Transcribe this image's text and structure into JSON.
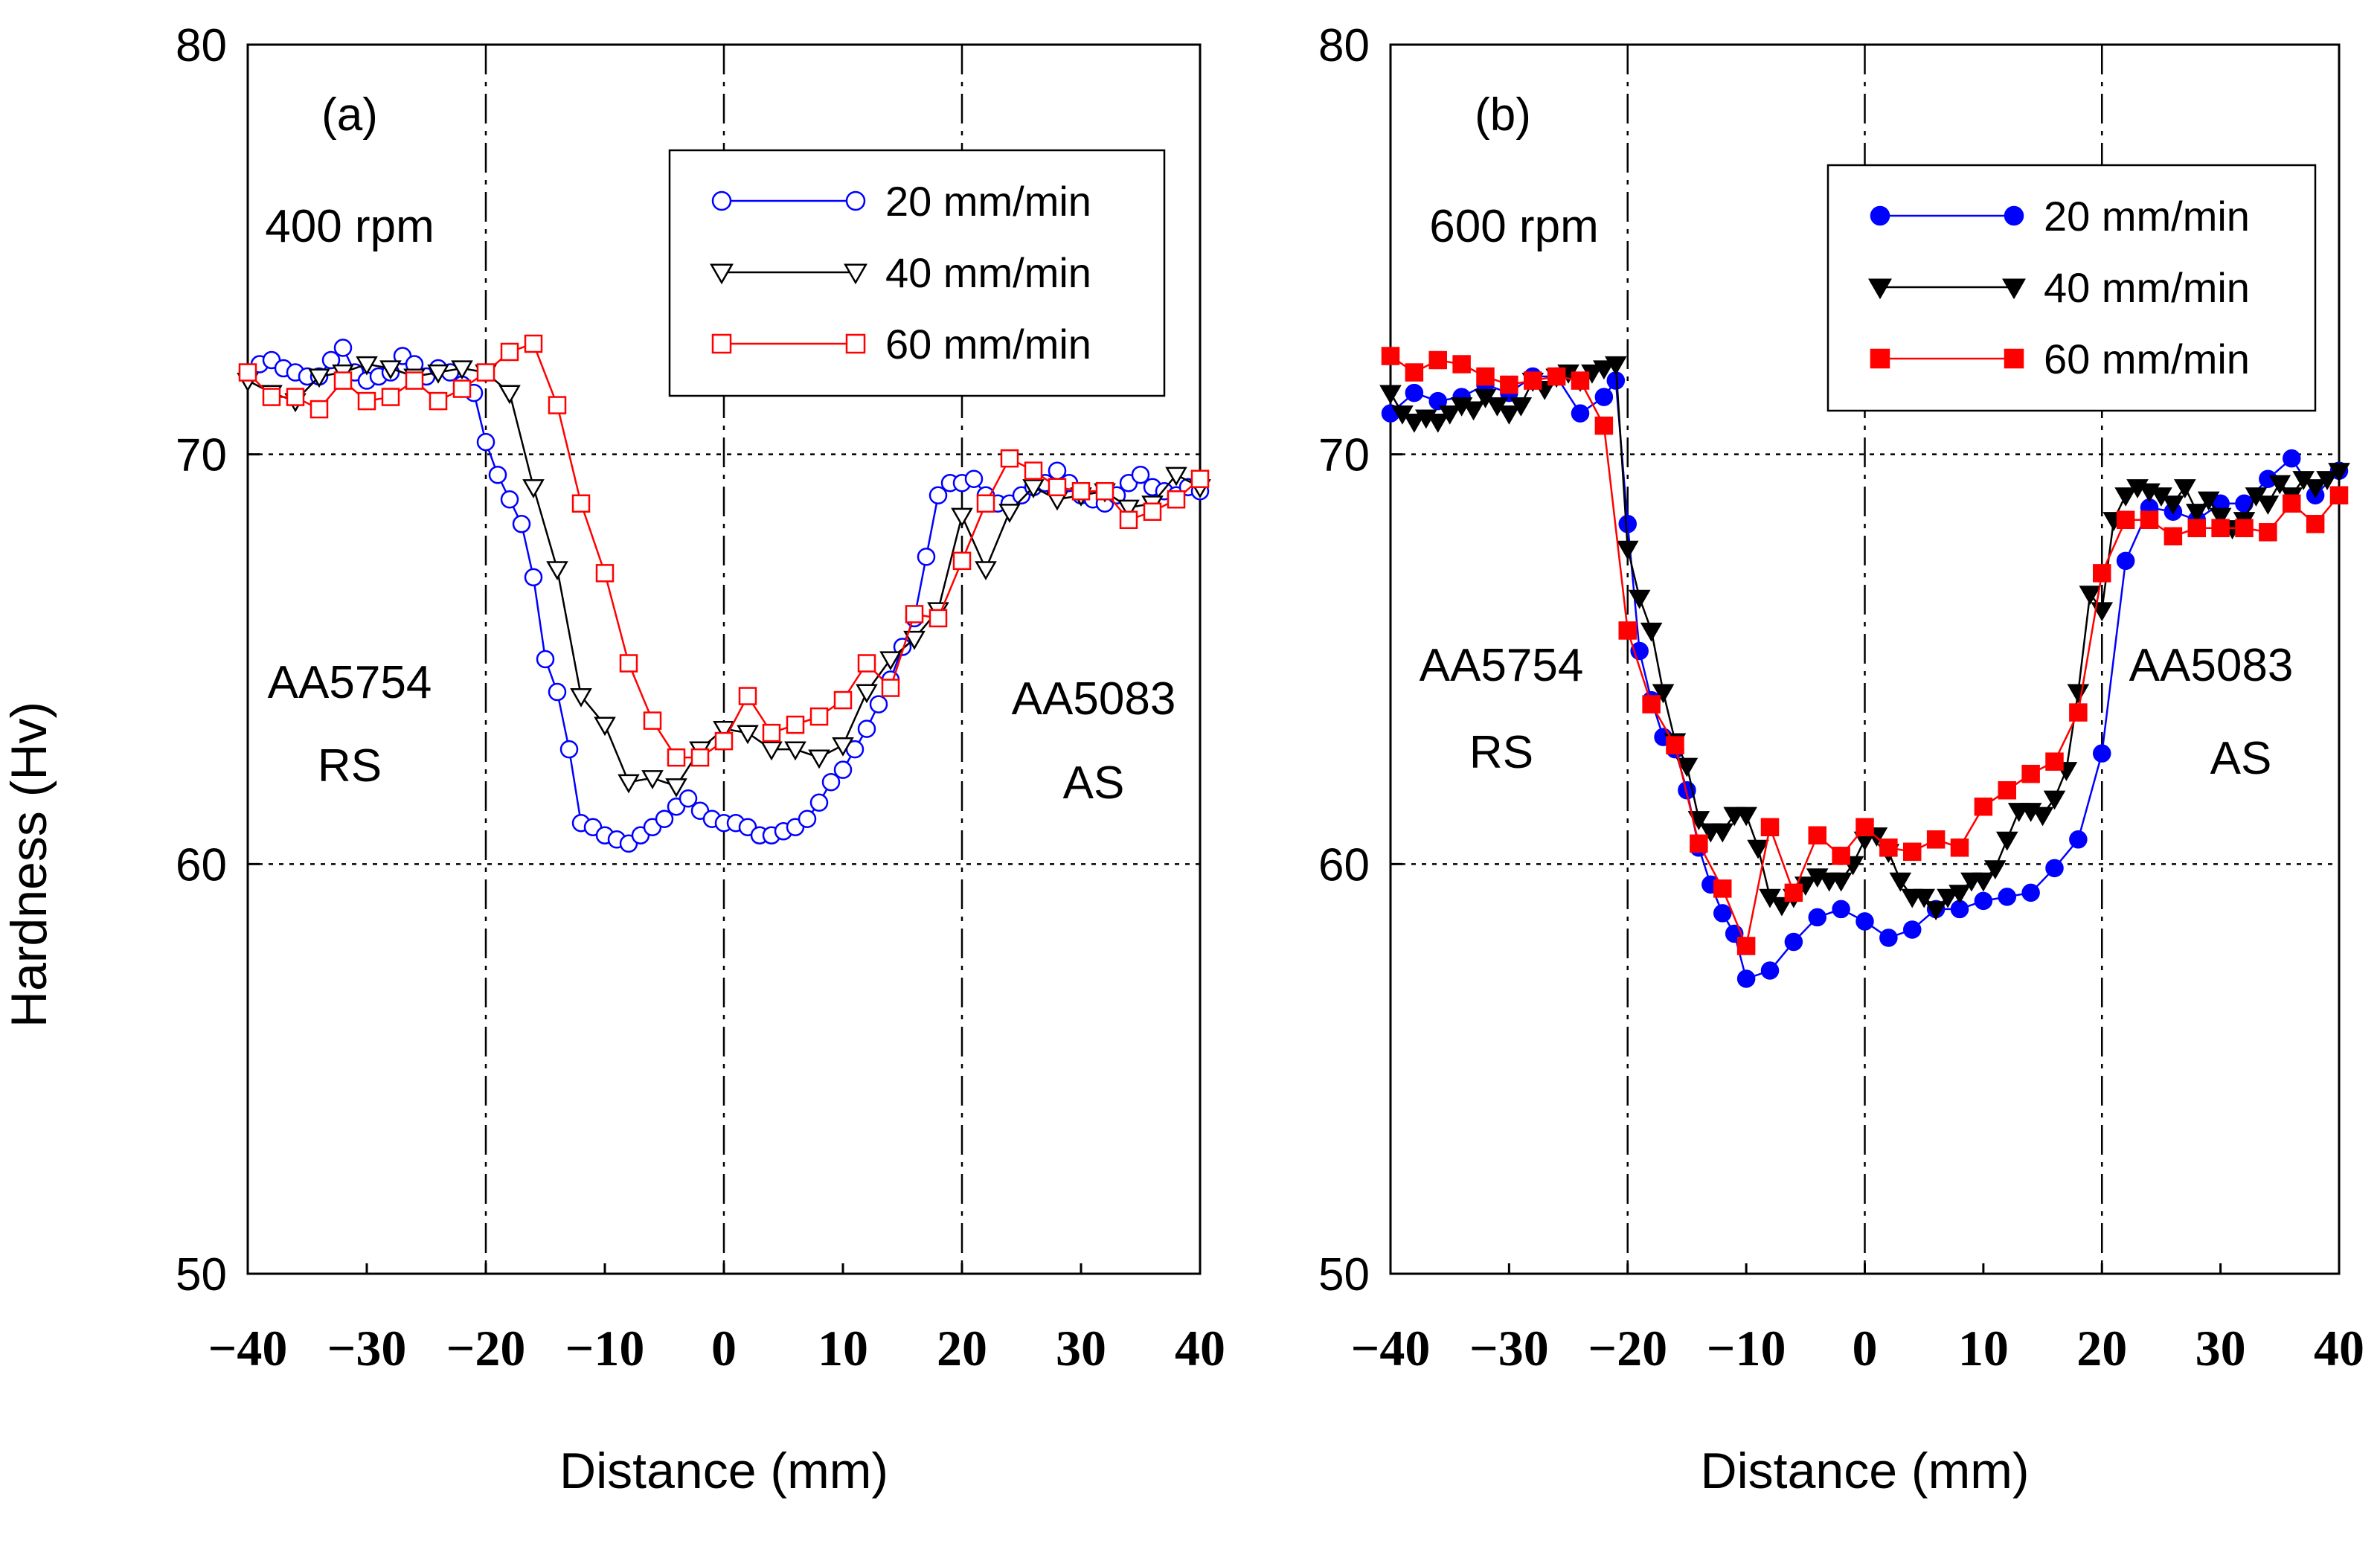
{
  "ylabel": "Hardness (Hv)",
  "chart_data": [
    {
      "type": "line",
      "panel_label": "(a)",
      "condition": "400 rpm",
      "left_material": "AA5754",
      "left_side": "RS",
      "right_material": "AA5083",
      "right_side": "AS",
      "xlabel": "Distance (mm)",
      "ylabel": "Hardness (Hv)",
      "xlim": [
        -40,
        40
      ],
      "ylim": [
        50,
        80
      ],
      "xticks": [
        "−40",
        "−30",
        "−20",
        "−10",
        "0",
        "10",
        "20",
        "30",
        "40"
      ],
      "xtick_values": [
        -40,
        -30,
        -20,
        -10,
        0,
        10,
        20,
        30,
        40
      ],
      "yticks": [
        "50",
        "60",
        "70",
        "80"
      ],
      "ytick_values": [
        50,
        60,
        70,
        80
      ],
      "vlines": [
        -20,
        0,
        20
      ],
      "hlines": [
        60,
        70
      ],
      "legend_position": "top-right",
      "series": [
        {
          "name": "20 mm/min",
          "color": "#0000ff",
          "marker": "circle-open",
          "x": [
            -40,
            -39,
            -38,
            -37,
            -36,
            -35,
            -34,
            -33,
            -32,
            -31,
            -30,
            -29,
            -28,
            -27,
            -26,
            -25,
            -24,
            -23,
            -22,
            -21,
            -20,
            -19,
            -18,
            -17,
            -16,
            -15,
            -14,
            -13,
            -12,
            -11,
            -10,
            -9,
            -8,
            -7,
            -6,
            -5,
            -4,
            -3,
            -2,
            -1,
            0,
            1,
            2,
            3,
            4,
            5,
            6,
            7,
            8,
            9,
            10,
            11,
            12,
            13,
            14,
            15,
            16,
            17,
            18,
            19,
            20,
            21,
            22,
            23,
            24,
            25,
            26,
            27,
            28,
            29,
            30,
            31,
            32,
            33,
            34,
            35,
            36,
            37,
            38,
            39,
            40
          ],
          "y": [
            72.0,
            72.2,
            72.3,
            72.1,
            72.0,
            71.9,
            71.9,
            72.3,
            72.6,
            72.0,
            71.8,
            71.9,
            72.0,
            72.4,
            72.2,
            71.9,
            72.1,
            72.0,
            71.7,
            71.5,
            70.3,
            69.5,
            68.9,
            68.3,
            67.0,
            65.0,
            64.2,
            62.8,
            61.0,
            60.9,
            60.7,
            60.6,
            60.5,
            60.7,
            60.9,
            61.1,
            61.4,
            61.6,
            61.3,
            61.1,
            61.0,
            61.0,
            60.9,
            60.7,
            60.7,
            60.8,
            60.9,
            61.1,
            61.5,
            62.0,
            62.3,
            62.8,
            63.3,
            63.9,
            64.5,
            65.3,
            66.0,
            67.5,
            69.0,
            69.3,
            69.3,
            69.4,
            69.0,
            68.8,
            68.8,
            69.0,
            69.2,
            69.3,
            69.6,
            69.3,
            69.0,
            68.9,
            68.8,
            69.0,
            69.3,
            69.5,
            69.2,
            69.1,
            69.0,
            69.2,
            69.1
          ]
        },
        {
          "name": "40 mm/min",
          "color": "#000000",
          "marker": "triangle-down-open",
          "x": [
            -40,
            -38,
            -36,
            -34,
            -32,
            -30,
            -28,
            -26,
            -24,
            -22,
            -20,
            -18,
            -16,
            -14,
            -12,
            -10,
            -8,
            -6,
            -4,
            -2,
            0,
            2,
            4,
            6,
            8,
            10,
            12,
            14,
            16,
            18,
            20,
            22,
            24,
            26,
            28,
            30,
            32,
            34,
            36,
            38,
            40
          ],
          "y": [
            71.8,
            71.5,
            71.3,
            71.9,
            72.0,
            72.2,
            72.1,
            71.9,
            72.0,
            72.1,
            72.0,
            71.5,
            69.2,
            67.2,
            64.1,
            63.4,
            62.0,
            62.1,
            61.9,
            62.8,
            63.3,
            63.2,
            62.8,
            62.8,
            62.6,
            62.9,
            64.2,
            65.0,
            65.5,
            66.2,
            68.5,
            67.2,
            68.6,
            69.2,
            68.9,
            69.0,
            69.1,
            68.7,
            68.8,
            69.5,
            69.2
          ]
        },
        {
          "name": "60 mm/min",
          "color": "#ff0000",
          "marker": "square-open",
          "x": [
            -40,
            -38,
            -36,
            -34,
            -32,
            -30,
            -28,
            -26,
            -24,
            -22,
            -20,
            -18,
            -16,
            -14,
            -12,
            -10,
            -8,
            -6,
            -4,
            -2,
            0,
            2,
            4,
            6,
            8,
            10,
            12,
            14,
            16,
            18,
            20,
            22,
            24,
            26,
            28,
            30,
            32,
            34,
            36,
            38,
            40
          ],
          "y": [
            72.0,
            71.4,
            71.4,
            71.1,
            71.8,
            71.3,
            71.4,
            71.8,
            71.3,
            71.6,
            72.0,
            72.5,
            72.7,
            71.2,
            68.8,
            67.1,
            64.9,
            63.5,
            62.6,
            62.6,
            63.0,
            64.1,
            63.2,
            63.4,
            63.6,
            64.0,
            64.9,
            64.3,
            66.1,
            66.0,
            67.4,
            68.8,
            69.9,
            69.6,
            69.2,
            69.1,
            69.1,
            68.4,
            68.6,
            68.9,
            69.4
          ]
        }
      ]
    },
    {
      "type": "line",
      "panel_label": "(b)",
      "condition": "600 rpm",
      "left_material": "AA5754",
      "left_side": "RS",
      "right_material": "AA5083",
      "right_side": "AS",
      "xlabel": "Distance (mm)",
      "ylabel": "Hardness (Hv)",
      "xlim": [
        -40,
        40
      ],
      "ylim": [
        50,
        80
      ],
      "xticks": [
        "−40",
        "−30",
        "−20",
        "−10",
        "0",
        "10",
        "20",
        "30",
        "40"
      ],
      "xtick_values": [
        -40,
        -30,
        -20,
        -10,
        0,
        10,
        20,
        30,
        40
      ],
      "yticks": [
        "50",
        "60",
        "70",
        "80"
      ],
      "ytick_values": [
        50,
        60,
        70,
        80
      ],
      "vlines": [
        -20,
        0,
        20
      ],
      "hlines": [
        60,
        70
      ],
      "legend_position": "top-right",
      "series": [
        {
          "name": "20 mm/min",
          "color": "#0000ff",
          "marker": "circle-filled",
          "x": [
            -40,
            -38,
            -36,
            -34,
            -32,
            -30,
            -28,
            -26,
            -24,
            -22,
            -21,
            -20,
            -19,
            -18,
            -17,
            -16,
            -15,
            -14,
            -13,
            -12,
            -11,
            -10,
            -8,
            -6,
            -4,
            -2,
            0,
            2,
            4,
            6,
            8,
            10,
            12,
            14,
            16,
            18,
            20,
            22,
            24,
            26,
            28,
            30,
            32,
            34,
            36,
            38,
            40
          ],
          "y": [
            71.0,
            71.5,
            71.3,
            71.4,
            71.7,
            71.5,
            71.9,
            71.9,
            71.0,
            71.4,
            71.8,
            68.3,
            65.2,
            64.0,
            63.1,
            62.8,
            61.8,
            60.4,
            59.5,
            58.8,
            58.3,
            57.2,
            57.4,
            58.1,
            58.7,
            58.9,
            58.6,
            58.2,
            58.4,
            58.9,
            58.9,
            59.1,
            59.2,
            59.3,
            59.9,
            60.6,
            62.7,
            67.4,
            68.7,
            68.6,
            68.4,
            68.8,
            68.8,
            69.4,
            69.9,
            69.0,
            69.6
          ]
        },
        {
          "name": "40 mm/min",
          "color": "#000000",
          "marker": "triangle-down-filled",
          "x": [
            -40,
            -39,
            -38,
            -37,
            -36,
            -35,
            -34,
            -33,
            -32,
            -31,
            -30,
            -29,
            -28,
            -27,
            -26,
            -25,
            -24,
            -23,
            -22,
            -21,
            -20,
            -19,
            -18,
            -17,
            -16,
            -15,
            -14,
            -13,
            -12,
            -11,
            -10,
            -9,
            -8,
            -7,
            -6,
            -5,
            -4,
            -3,
            -2,
            -1,
            0,
            1,
            2,
            3,
            4,
            5,
            6,
            7,
            8,
            9,
            10,
            11,
            12,
            13,
            14,
            15,
            16,
            17,
            18,
            19,
            20,
            21,
            22,
            23,
            24,
            25,
            26,
            27,
            28,
            29,
            30,
            31,
            32,
            33,
            34,
            35,
            36,
            37,
            38,
            39,
            40
          ],
          "y": [
            71.5,
            71.0,
            70.8,
            70.9,
            70.8,
            71.0,
            71.2,
            71.1,
            71.4,
            71.2,
            71.0,
            71.2,
            71.8,
            71.6,
            71.9,
            72.0,
            71.8,
            72.0,
            72.1,
            72.2,
            67.7,
            66.5,
            65.7,
            64.2,
            63.0,
            62.4,
            61.1,
            60.8,
            60.8,
            61.2,
            61.2,
            60.4,
            59.2,
            59.0,
            59.2,
            59.5,
            59.7,
            59.6,
            59.6,
            60.0,
            60.6,
            60.7,
            60.3,
            59.6,
            59.2,
            59.2,
            58.9,
            59.2,
            59.3,
            59.6,
            59.6,
            59.9,
            60.6,
            61.3,
            61.3,
            61.2,
            61.6,
            62.3,
            64.2,
            66.6,
            66.2,
            68.4,
            69.0,
            69.2,
            69.1,
            69.0,
            68.8,
            69.2,
            68.6,
            68.9,
            68.5,
            68.2,
            68.4,
            69.0,
            68.8,
            69.3,
            69.0,
            69.4,
            69.2,
            69.4,
            69.6
          ]
        },
        {
          "name": "60 mm/min",
          "color": "#ff0000",
          "marker": "square-filled",
          "x": [
            -40,
            -38,
            -36,
            -34,
            -32,
            -30,
            -28,
            -26,
            -24,
            -22,
            -20,
            -18,
            -16,
            -14,
            -12,
            -10,
            -8,
            -6,
            -4,
            -2,
            0,
            2,
            4,
            6,
            8,
            10,
            12,
            14,
            16,
            18,
            20,
            22,
            24,
            26,
            28,
            30,
            32,
            34,
            36,
            38,
            40
          ],
          "y": [
            72.4,
            72.0,
            72.3,
            72.2,
            71.9,
            71.7,
            71.8,
            71.9,
            71.8,
            70.7,
            65.7,
            63.9,
            62.9,
            60.5,
            59.4,
            58.0,
            60.9,
            59.3,
            60.7,
            60.2,
            60.9,
            60.4,
            60.3,
            60.6,
            60.4,
            61.4,
            61.8,
            62.2,
            62.5,
            63.7,
            67.1,
            68.4,
            68.4,
            68.0,
            68.2,
            68.2,
            68.2,
            68.1,
            68.8,
            68.3,
            69.0
          ]
        }
      ]
    }
  ]
}
